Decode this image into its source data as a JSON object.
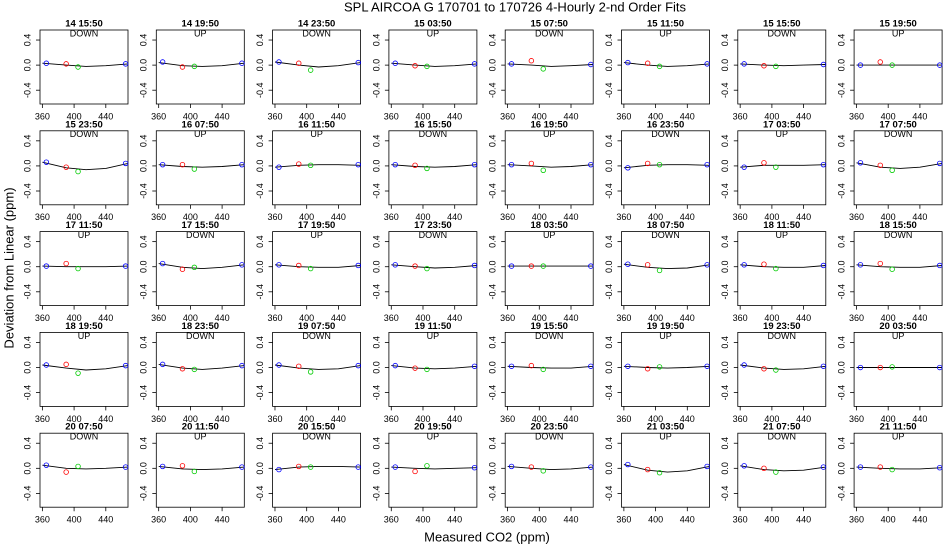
{
  "title": "SPL   AIRCOA G  170701 to 170726   4-Hourly 2-nd Order Fits",
  "x_label": "Measured CO2 (ppm)",
  "y_label": "Deviation from Linear (ppm)",
  "axes": {
    "xlim": [
      357,
      468
    ],
    "ylim": [
      -0.62,
      0.56
    ],
    "xticks": [
      360,
      400,
      440
    ],
    "yticks": [
      -0.4,
      {
        "value": 0,
        "label": "0.0"
      },
      0.4
    ],
    "x": [
      365,
      390,
      405,
      465
    ],
    "point_colors": [
      "#0000ff",
      "#ff0000",
      "#00cc00",
      "#0000ff"
    ],
    "fit_x": [
      360,
      390,
      415,
      440,
      468
    ],
    "fit_color": "#000000"
  },
  "chart_data": [
    {
      "type": "scatter",
      "title": "14 15:50",
      "subtitle": "DOWN",
      "values": [
        0.03,
        0.02,
        -0.03,
        0.02
      ],
      "fit_values": [
        0.03,
        0.0,
        -0.02,
        -0.01,
        0.02
      ]
    },
    {
      "type": "scatter",
      "title": "14 19:50",
      "subtitle": "UP",
      "values": [
        0.05,
        -0.03,
        -0.02,
        0.03
      ],
      "fit_values": [
        0.04,
        -0.01,
        -0.02,
        -0.01,
        0.03
      ]
    },
    {
      "type": "scatter",
      "title": "14 23:50",
      "subtitle": "DOWN",
      "values": [
        0.05,
        0.03,
        -0.08,
        0.04
      ],
      "fit_values": [
        0.05,
        0.0,
        -0.03,
        -0.01,
        0.04
      ]
    },
    {
      "type": "scatter",
      "title": "15 03:50",
      "subtitle": "UP",
      "values": [
        0.03,
        -0.01,
        -0.02,
        0.02
      ],
      "fit_values": [
        0.03,
        0.0,
        -0.02,
        -0.01,
        0.02
      ]
    },
    {
      "type": "scatter",
      "title": "15 07:50",
      "subtitle": "DOWN",
      "values": [
        0.02,
        0.07,
        -0.06,
        0.01
      ],
      "fit_values": [
        0.02,
        0.0,
        -0.02,
        -0.01,
        0.01
      ]
    },
    {
      "type": "scatter",
      "title": "15 11:50",
      "subtitle": "UP",
      "values": [
        0.04,
        0.03,
        -0.02,
        0.02
      ],
      "fit_values": [
        0.04,
        0.0,
        -0.02,
        -0.01,
        0.02
      ]
    },
    {
      "type": "scatter",
      "title": "15 15:50",
      "subtitle": "DOWN",
      "values": [
        0.02,
        -0.01,
        -0.02,
        0.01
      ],
      "fit_values": [
        0.02,
        0.0,
        -0.01,
        0.0,
        0.01
      ]
    },
    {
      "type": "scatter",
      "title": "15 19:50",
      "subtitle": "UP",
      "values": [
        0.0,
        0.05,
        0.0,
        0.0
      ],
      "fit_values": [
        0.0,
        0.0,
        0.0,
        0.0,
        0.0
      ]
    },
    {
      "type": "scatter",
      "title": "15 23:50",
      "subtitle": "DOWN",
      "values": [
        0.06,
        -0.02,
        -0.09,
        0.04
      ],
      "fit_values": [
        0.06,
        -0.03,
        -0.06,
        -0.04,
        0.04
      ]
    },
    {
      "type": "scatter",
      "title": "16 07:50",
      "subtitle": "UP",
      "values": [
        0.02,
        0.02,
        -0.05,
        0.02
      ],
      "fit_values": [
        0.02,
        -0.01,
        -0.02,
        -0.01,
        0.02
      ]
    },
    {
      "type": "scatter",
      "title": "16 11:50",
      "subtitle": "UP",
      "values": [
        -0.02,
        0.03,
        0.01,
        0.02
      ],
      "fit_values": [
        -0.02,
        0.01,
        0.02,
        0.02,
        0.01
      ]
    },
    {
      "type": "scatter",
      "title": "16 15:50",
      "subtitle": "DOWN",
      "values": [
        0.02,
        0.01,
        -0.04,
        0.02
      ],
      "fit_values": [
        0.02,
        -0.01,
        -0.02,
        -0.01,
        0.02
      ]
    },
    {
      "type": "scatter",
      "title": "16 19:50",
      "subtitle": "UP",
      "values": [
        0.02,
        0.04,
        -0.07,
        0.02
      ],
      "fit_values": [
        0.02,
        0.0,
        -0.02,
        -0.01,
        0.02
      ]
    },
    {
      "type": "scatter",
      "title": "16 23:50",
      "subtitle": "DOWN",
      "values": [
        -0.03,
        0.04,
        0.02,
        0.02
      ],
      "fit_values": [
        -0.03,
        0.01,
        0.02,
        0.02,
        0.01
      ]
    },
    {
      "type": "scatter",
      "title": "17 03:50",
      "subtitle": "UP",
      "values": [
        -0.02,
        0.05,
        -0.02,
        0.02
      ],
      "fit_values": [
        -0.02,
        0.01,
        0.01,
        0.01,
        0.02
      ]
    },
    {
      "type": "scatter",
      "title": "17 07:50",
      "subtitle": "DOWN",
      "values": [
        0.05,
        0.01,
        -0.07,
        0.04
      ],
      "fit_values": [
        0.05,
        -0.02,
        -0.04,
        -0.02,
        0.04
      ]
    },
    {
      "type": "scatter",
      "title": "17 11:50",
      "subtitle": "UP",
      "values": [
        0.01,
        0.05,
        -0.03,
        0.01
      ],
      "fit_values": [
        0.01,
        0.0,
        0.0,
        0.0,
        0.01
      ]
    },
    {
      "type": "scatter",
      "title": "17 15:50",
      "subtitle": "DOWN",
      "values": [
        0.05,
        -0.04,
        -0.01,
        0.03
      ],
      "fit_values": [
        0.05,
        -0.01,
        -0.03,
        -0.01,
        0.03
      ]
    },
    {
      "type": "scatter",
      "title": "17 19:50",
      "subtitle": "UP",
      "values": [
        0.03,
        0.02,
        -0.03,
        0.02
      ],
      "fit_values": [
        0.03,
        0.0,
        -0.01,
        -0.01,
        0.02
      ]
    },
    {
      "type": "scatter",
      "title": "17 23:50",
      "subtitle": "DOWN",
      "values": [
        0.03,
        0.01,
        -0.03,
        0.02
      ],
      "fit_values": [
        0.03,
        0.0,
        -0.02,
        -0.01,
        0.02
      ]
    },
    {
      "type": "scatter",
      "title": "18 03:50",
      "subtitle": "UP",
      "values": [
        0.01,
        0.01,
        0.01,
        0.01
      ],
      "fit_values": [
        0.01,
        0.01,
        0.01,
        0.01,
        0.01
      ]
    },
    {
      "type": "scatter",
      "title": "18 07:50",
      "subtitle": "DOWN",
      "values": [
        0.04,
        0.03,
        -0.06,
        0.03
      ],
      "fit_values": [
        0.04,
        -0.01,
        -0.03,
        -0.02,
        0.03
      ]
    },
    {
      "type": "scatter",
      "title": "18 11:50",
      "subtitle": "UP",
      "values": [
        0.03,
        0.04,
        -0.03,
        0.02
      ],
      "fit_values": [
        0.03,
        0.0,
        -0.01,
        -0.01,
        0.02
      ]
    },
    {
      "type": "scatter",
      "title": "18 15:50",
      "subtitle": "DOWN",
      "values": [
        0.03,
        0.05,
        -0.04,
        0.02
      ],
      "fit_values": [
        0.03,
        0.0,
        -0.01,
        -0.01,
        0.02
      ]
    },
    {
      "type": "scatter",
      "title": "18 19:50",
      "subtitle": "UP",
      "values": [
        0.04,
        0.05,
        -0.09,
        0.03
      ],
      "fit_values": [
        0.04,
        -0.01,
        -0.04,
        -0.02,
        0.03
      ]
    },
    {
      "type": "scatter",
      "title": "18 23:50",
      "subtitle": "DOWN",
      "values": [
        0.05,
        -0.02,
        -0.03,
        0.03
      ],
      "fit_values": [
        0.05,
        -0.01,
        -0.03,
        -0.01,
        0.03
      ]
    },
    {
      "type": "scatter",
      "title": "19 07:50",
      "subtitle": "DOWN",
      "values": [
        0.04,
        0.02,
        -0.07,
        0.03
      ],
      "fit_values": [
        0.04,
        -0.01,
        -0.03,
        -0.02,
        0.03
      ]
    },
    {
      "type": "scatter",
      "title": "19 11:50",
      "subtitle": "UP",
      "values": [
        0.03,
        -0.01,
        -0.03,
        0.02
      ],
      "fit_values": [
        0.03,
        -0.01,
        -0.02,
        -0.01,
        0.02
      ]
    },
    {
      "type": "scatter",
      "title": "19 15:50",
      "subtitle": "DOWN",
      "values": [
        0.02,
        0.03,
        -0.03,
        0.02
      ],
      "fit_values": [
        0.02,
        0.0,
        -0.01,
        -0.01,
        0.02
      ]
    },
    {
      "type": "scatter",
      "title": "19 19:50",
      "subtitle": "UP",
      "values": [
        0.02,
        -0.02,
        0.01,
        0.02
      ],
      "fit_values": [
        0.02,
        0.0,
        -0.01,
        0.0,
        0.02
      ]
    },
    {
      "type": "scatter",
      "title": "19 23:50",
      "subtitle": "DOWN",
      "values": [
        0.04,
        -0.02,
        -0.04,
        0.02
      ],
      "fit_values": [
        0.04,
        -0.01,
        -0.03,
        -0.02,
        0.02
      ]
    },
    {
      "type": "scatter",
      "title": "20 03:50",
      "subtitle": "UP",
      "values": [
        0.0,
        0.0,
        0.01,
        0.0
      ],
      "fit_values": [
        0.0,
        0.0,
        0.0,
        0.0,
        0.0
      ]
    },
    {
      "type": "scatter",
      "title": "20 07:50",
      "subtitle": "DOWN",
      "values": [
        0.05,
        -0.06,
        0.03,
        0.02
      ],
      "fit_values": [
        0.05,
        0.0,
        -0.01,
        0.0,
        0.02
      ]
    },
    {
      "type": "scatter",
      "title": "20 11:50",
      "subtitle": "UP",
      "values": [
        0.03,
        0.04,
        -0.05,
        0.02
      ],
      "fit_values": [
        0.03,
        -0.01,
        -0.02,
        -0.01,
        0.02
      ]
    },
    {
      "type": "scatter",
      "title": "20 15:50",
      "subtitle": "DOWN",
      "values": [
        -0.02,
        0.03,
        0.02,
        0.02
      ],
      "fit_values": [
        -0.02,
        0.02,
        0.03,
        0.03,
        0.02
      ]
    },
    {
      "type": "scatter",
      "title": "20 19:50",
      "subtitle": "UP",
      "values": [
        0.02,
        -0.05,
        0.04,
        0.01
      ],
      "fit_values": [
        0.02,
        0.0,
        -0.01,
        0.0,
        0.01
      ]
    },
    {
      "type": "scatter",
      "title": "20 23:50",
      "subtitle": "DOWN",
      "values": [
        0.03,
        0.02,
        -0.04,
        0.02
      ],
      "fit_values": [
        0.03,
        0.0,
        -0.02,
        -0.01,
        0.02
      ]
    },
    {
      "type": "scatter",
      "title": "21 03:50",
      "subtitle": "UP",
      "values": [
        0.06,
        -0.02,
        -0.07,
        0.03
      ],
      "fit_values": [
        0.06,
        -0.03,
        -0.06,
        -0.04,
        0.03
      ]
    },
    {
      "type": "scatter",
      "title": "21 07:50",
      "subtitle": "DOWN",
      "values": [
        0.04,
        0.0,
        -0.06,
        0.02
      ],
      "fit_values": [
        0.04,
        -0.02,
        -0.04,
        -0.03,
        0.02
      ]
    },
    {
      "type": "scatter",
      "title": "21 11:50",
      "subtitle": "UP",
      "values": [
        0.02,
        0.02,
        -0.02,
        0.01
      ],
      "fit_values": [
        0.02,
        0.0,
        -0.01,
        -0.01,
        0.01
      ]
    }
  ]
}
